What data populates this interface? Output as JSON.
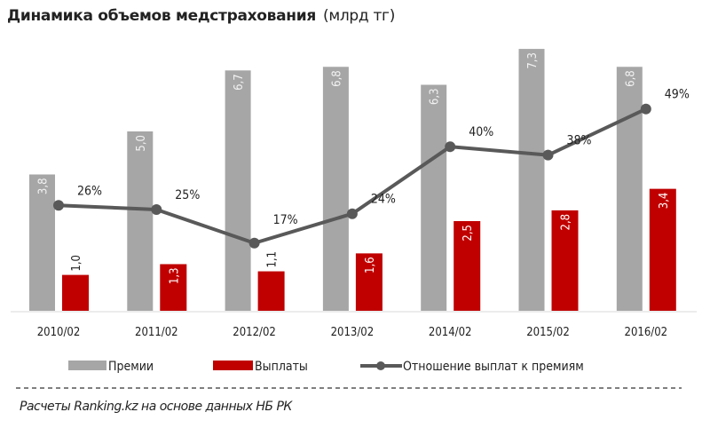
{
  "chart_data": {
    "type": "bar",
    "title": "Динамика  объемов  медстрахования",
    "unit": "(млрд тг)",
    "categories": [
      "2010/02",
      "2011/02",
      "2012/02",
      "2013/02",
      "2014/02",
      "2015/02",
      "2016/02"
    ],
    "series": [
      {
        "name": "Премии",
        "type": "bar",
        "color": "#a6a6a6",
        "values": [
          3.8,
          5.0,
          6.7,
          6.8,
          6.3,
          7.3,
          6.8
        ],
        "labels": [
          "3,8",
          "5,0",
          "6,7",
          "6,8",
          "6,3",
          "7,3",
          "6,8"
        ]
      },
      {
        "name": "Выплаты",
        "type": "bar",
        "color": "#c00000",
        "values": [
          1.0,
          1.3,
          1.1,
          1.6,
          2.5,
          2.8,
          3.4
        ],
        "labels": [
          "1,0",
          "1,3",
          "1,1",
          "1,6",
          "2,5",
          "2,8",
          "3,4"
        ]
      },
      {
        "name": "Отношение выплат к премиям",
        "type": "line",
        "color": "#595959",
        "values": [
          26,
          25,
          17,
          24,
          40,
          38,
          49
        ],
        "labels": [
          "26%",
          "25%",
          "17%",
          "24%",
          "40%",
          "38%",
          "49%"
        ]
      }
    ],
    "grid": false,
    "legend": "bottom"
  },
  "footer": "Расчеты Ranking.kz на основе данных  НБ РК"
}
